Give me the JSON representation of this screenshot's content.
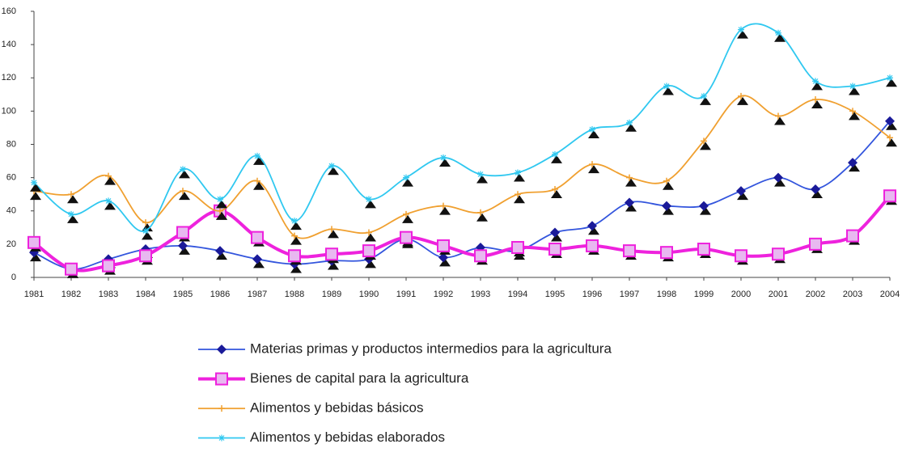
{
  "chart_data": {
    "type": "line",
    "categories": [
      "1981",
      "1982",
      "1983",
      "1984",
      "1985",
      "1986",
      "1987",
      "1988",
      "1989",
      "1990",
      "1991",
      "1992",
      "1993",
      "1994",
      "1995",
      "1996",
      "1997",
      "1998",
      "1999",
      "2000",
      "2001",
      "2002",
      "2003",
      "2004"
    ],
    "series": [
      {
        "name": "Materias primas y productos intermedios para la agricultura",
        "color": "#3355dd",
        "marker": "diamond",
        "values": [
          15,
          5,
          11,
          17,
          19,
          16,
          11,
          8,
          10,
          11,
          23,
          12,
          18,
          16,
          27,
          31,
          45,
          43,
          43,
          52,
          60,
          53,
          69,
          94
        ]
      },
      {
        "name": "Bienes de capital para la agricultura",
        "color": "#ee22dd",
        "marker": "square",
        "values": [
          21,
          5,
          7,
          13,
          27,
          40,
          24,
          13,
          14,
          16,
          24,
          19,
          13,
          18,
          17,
          19,
          16,
          15,
          17,
          13,
          14,
          20,
          25,
          49
        ]
      },
      {
        "name": "Alimentos y bebidas básicos",
        "color": "#f0a030",
        "marker": "plus",
        "values": [
          52,
          50,
          61,
          33,
          52,
          40,
          58,
          25,
          29,
          27,
          38,
          43,
          39,
          50,
          53,
          68,
          60,
          58,
          82,
          109,
          97,
          107,
          100,
          84
        ]
      },
      {
        "name": "Alimentos y bebidas elaborados",
        "color": "#30c8f0",
        "marker": "star",
        "values": [
          57,
          38,
          46,
          28,
          65,
          47,
          73,
          34,
          67,
          47,
          60,
          72,
          62,
          63,
          74,
          89,
          93,
          115,
          109,
          149,
          147,
          118,
          115,
          120
        ]
      }
    ],
    "ylim": [
      0,
      160
    ],
    "yticks": [
      0,
      20,
      40,
      60,
      80,
      100,
      120,
      140,
      160
    ],
    "grid": false
  }
}
